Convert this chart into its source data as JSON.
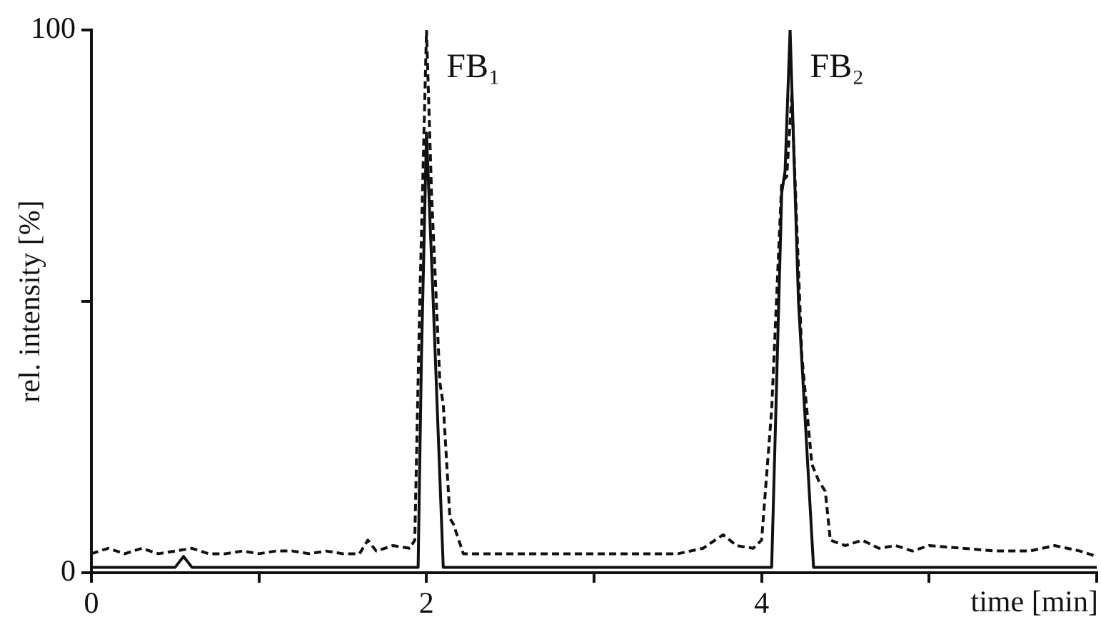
{
  "chart_data": {
    "type": "line",
    "xlabel": "time [min]",
    "ylabel": "rel. intensity [%]",
    "xlim": [
      0,
      6
    ],
    "xticks": [
      0,
      {
        "value": 1,
        "label": null
      },
      2,
      {
        "value": 3,
        "label": null
      },
      4,
      {
        "value": 5,
        "label": null
      },
      {
        "value": 6,
        "label": null
      }
    ],
    "ylim": [
      0,
      100
    ],
    "yticks": [
      0,
      {
        "value": 50,
        "label": null
      },
      100
    ],
    "grid": false,
    "legend": false,
    "marker": "none",
    "annotations": [
      {
        "text": "FB₁",
        "x": 2.0,
        "y": 93
      },
      {
        "text": "FB₂",
        "x": 4.17,
        "y": 93
      }
    ],
    "series": [
      {
        "color": "#111111",
        "line_style": "solid",
        "x": [
          0,
          0.5,
          0.55,
          0.6,
          1.95,
          1.97,
          2.0,
          2.04,
          2.1,
          4.06,
          4.12,
          4.14,
          4.17,
          4.22,
          4.31,
          6
        ],
        "values": [
          1,
          1,
          3,
          1,
          1,
          40,
          81,
          50,
          1,
          1,
          70,
          74,
          100,
          50,
          1,
          1
        ]
      },
      {
        "color": "#111111",
        "line_style": "dashed",
        "x": [
          0,
          0.1,
          0.2,
          0.3,
          0.4,
          0.5,
          0.6,
          0.7,
          0.8,
          0.9,
          1.0,
          1.1,
          1.2,
          1.3,
          1.4,
          1.5,
          1.6,
          1.65,
          1.7,
          1.8,
          1.9,
          1.93,
          1.96,
          2.0,
          2.03,
          2.08,
          2.1,
          2.14,
          2.16,
          2.22,
          2.5,
          3.0,
          3.5,
          3.65,
          3.77,
          3.85,
          3.95,
          4.0,
          4.06,
          4.12,
          4.15,
          4.18,
          4.24,
          4.3,
          4.34,
          4.38,
          4.41,
          4.5,
          4.6,
          4.7,
          4.8,
          4.9,
          5.0,
          5.2,
          5.4,
          5.6,
          5.75,
          5.9,
          6.0
        ],
        "values": [
          3.5,
          4.5,
          3.5,
          4.5,
          3.5,
          4,
          4.5,
          3.5,
          3.5,
          4,
          3.5,
          4,
          4,
          3.5,
          4,
          3.5,
          3.5,
          6,
          4,
          5,
          4.5,
          6,
          50,
          100,
          70,
          35,
          31,
          10,
          9,
          3.5,
          3.5,
          3.5,
          3.5,
          4.5,
          7,
          5,
          4.5,
          6,
          30,
          72,
          73,
          88,
          40,
          20,
          17,
          15,
          6,
          5,
          6,
          4.5,
          5,
          4,
          5,
          4.5,
          4,
          4,
          5,
          4,
          3
        ]
      }
    ]
  }
}
